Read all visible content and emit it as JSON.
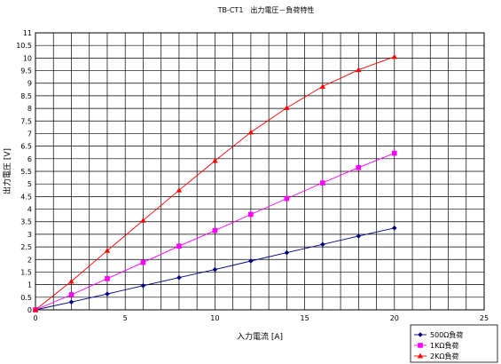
{
  "chart_data": {
    "type": "line",
    "title": "TB-CT1　出力電圧－負荷特性",
    "xlabel": "入力電流 [A]",
    "ylabel": "出力電圧 [V]",
    "xlim": [
      0,
      25
    ],
    "ylim": [
      0,
      11
    ],
    "x_ticks": [
      "0",
      "5",
      "10",
      "15",
      "20",
      "25"
    ],
    "y_ticks": [
      "0",
      "0.5",
      "1",
      "1.5",
      "2",
      "2.5",
      "3",
      "3.5",
      "4",
      "4.5",
      "5",
      "5.5",
      "6",
      "6.5",
      "7",
      "7.5",
      "8",
      "8.5",
      "9",
      "9.5",
      "10",
      "10.5",
      "11"
    ],
    "grid": true,
    "legend_position": "bottom-right",
    "x": [
      0,
      2,
      4,
      6,
      8,
      10,
      12,
      14,
      16,
      18,
      20
    ],
    "series": [
      {
        "name": "500Ω負荷",
        "color": "#000080",
        "marker": "diamond",
        "values": [
          0,
          0.31,
          0.63,
          0.96,
          1.28,
          1.6,
          1.94,
          2.27,
          2.6,
          2.93,
          3.25
        ]
      },
      {
        "name": "1KΩ負荷",
        "color": "#ff00ff",
        "marker": "square",
        "values": [
          0,
          0.6,
          1.24,
          1.88,
          2.53,
          3.15,
          3.79,
          4.42,
          5.04,
          5.65,
          6.22
        ]
      },
      {
        "name": "2KΩ負荷",
        "color": "#ff0000",
        "marker": "triangle",
        "values": [
          0,
          1.13,
          2.35,
          3.55,
          4.75,
          5.92,
          7.05,
          8.02,
          8.87,
          9.53,
          10.05
        ]
      }
    ]
  }
}
